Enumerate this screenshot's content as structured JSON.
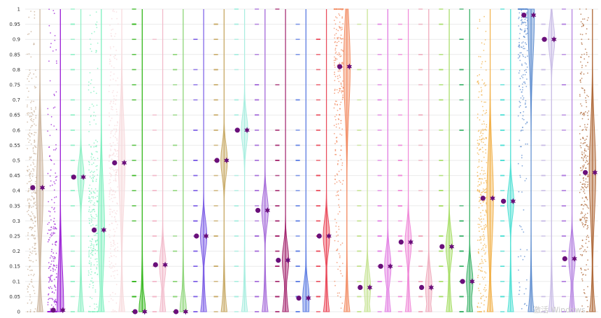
{
  "chart_data": {
    "type": "violin",
    "ylim": [
      0,
      1
    ],
    "y_ticks": [
      "0",
      "0.05",
      "0.1",
      "0.15",
      "0.2",
      "0.25",
      "0.3",
      "0.35",
      "0.4",
      "0.45",
      "0.5",
      "0.55",
      "0.6",
      "0.65",
      "0.7",
      "0.75",
      "0.8",
      "0.85",
      "0.9",
      "0.95",
      "1"
    ],
    "grid": true,
    "legend": "none",
    "mean_marker_color": "#6a0f7a",
    "watermark": "激活 Windows",
    "series": [
      {
        "color": "#c9b29a",
        "mean": 0.41,
        "density": "dense"
      },
      {
        "color": "#9b1fd6",
        "mean": 0.005,
        "density": "dense"
      },
      {
        "color": "#8ff0c5",
        "mean": 0.445,
        "density": "sparse"
      },
      {
        "color": "#7ff0bf",
        "mean": 0.27,
        "density": "dense"
      },
      {
        "color": "#f7d9dc",
        "mean": 0.492,
        "density": "dense"
      },
      {
        "color": "#37b81f",
        "mean": 0.0,
        "density": "sparse"
      },
      {
        "color": "#f2b9c9",
        "mean": 0.155,
        "density": "sparse"
      },
      {
        "color": "#8fd67a",
        "mean": 0.0,
        "density": "sparse"
      },
      {
        "color": "#7d5ee6",
        "mean": 0.25,
        "density": "sparse"
      },
      {
        "color": "#c8aa66",
        "mean": 0.5,
        "density": "sparse"
      },
      {
        "color": "#a8eee0",
        "mean": 0.6,
        "density": "sparse"
      },
      {
        "color": "#a56bd9",
        "mean": 0.335,
        "density": "sparse"
      },
      {
        "color": "#a4266e",
        "mean": 0.17,
        "density": "sparse"
      },
      {
        "color": "#5f7ee3",
        "mean": 0.045,
        "density": "sparse"
      },
      {
        "color": "#ea4a5a",
        "mean": 0.25,
        "density": "sparse"
      },
      {
        "color": "#f28b62",
        "mean": 0.81,
        "density": "dense"
      },
      {
        "color": "#c6e392",
        "mean": 0.08,
        "density": "sparse"
      },
      {
        "color": "#e27fe3",
        "mean": 0.15,
        "density": "sparse"
      },
      {
        "color": "#f08ad8",
        "mean": 0.23,
        "density": "sparse"
      },
      {
        "color": "#efabbd",
        "mean": 0.08,
        "density": "sparse"
      },
      {
        "color": "#a6dd65",
        "mean": 0.215,
        "density": "sparse"
      },
      {
        "color": "#3fb36b",
        "mean": 0.1,
        "density": "sparse"
      },
      {
        "color": "#f2b14a",
        "mean": 0.375,
        "density": "dense"
      },
      {
        "color": "#4fe0d4",
        "mean": 0.365,
        "density": "sparse"
      },
      {
        "color": "#5f8ed0",
        "mean": 0.98,
        "density": "dense"
      },
      {
        "color": "#c9bce6",
        "mean": 0.9,
        "density": "sparse"
      },
      {
        "color": "#b27ee0",
        "mean": 0.175,
        "density": "sparse"
      },
      {
        "color": "#b06a3a",
        "mean": 0.46,
        "density": "dense"
      }
    ]
  }
}
